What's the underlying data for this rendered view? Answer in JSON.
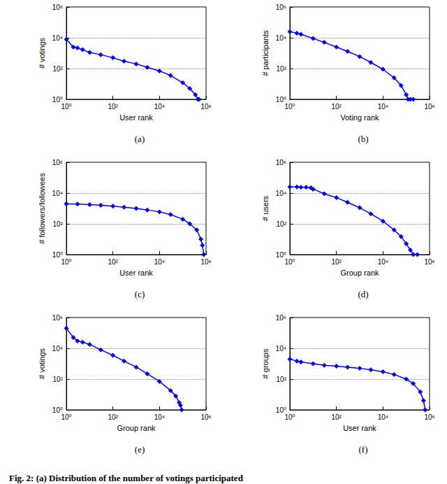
{
  "chart_data": [
    {
      "type": "line",
      "title": "(a)",
      "x_label": "User rank",
      "y_label": "# votings",
      "x": [
        1,
        2,
        3,
        5,
        10,
        30,
        100,
        300,
        1000,
        3000,
        10000,
        30000,
        100000,
        200000,
        350000,
        450000,
        500000
      ],
      "values": [
        8000,
        2500,
        2200,
        1700,
        1100,
        800,
        500,
        300,
        200,
        120,
        70,
        35,
        12,
        5,
        2,
        1,
        1
      ],
      "color": "#0000ee",
      "marker": "diamond",
      "log": true,
      "grid": true,
      "xlim": [
        1,
        1000000
      ],
      "ylim": [
        1,
        1000000
      ],
      "xticks": [
        {
          "value": 1,
          "label": "10⁰"
        },
        {
          "value": 100,
          "label": "10²"
        },
        {
          "value": 10000,
          "label": "10⁴"
        },
        {
          "value": 1000000,
          "label": "10⁶"
        }
      ],
      "yticks": [
        {
          "value": 1,
          "label": "10⁰"
        },
        {
          "value": 100,
          "label": "10²"
        },
        {
          "value": 10000,
          "label": "10⁴"
        },
        {
          "value": 1000000,
          "label": "10⁶"
        }
      ]
    },
    {
      "type": "line",
      "title": "(b)",
      "x_label": "Voting rank",
      "y_label": "# participants",
      "x": [
        1,
        2,
        3,
        10,
        30,
        100,
        300,
        1000,
        3000,
        10000,
        30000,
        60000,
        100000,
        120000,
        150000,
        200000
      ],
      "values": [
        25000,
        20000,
        17000,
        9000,
        5000,
        2500,
        1300,
        600,
        250,
        90,
        25,
        8,
        2,
        1,
        1,
        1
      ],
      "color": "#0000ee",
      "marker": "diamond",
      "log": true,
      "grid": true,
      "xlim": [
        1,
        1000000
      ],
      "ylim": [
        1,
        1000000
      ],
      "xticks": [
        {
          "value": 1,
          "label": "10⁰"
        },
        {
          "value": 100,
          "label": "10²"
        },
        {
          "value": 10000,
          "label": "10⁴"
        },
        {
          "value": 1000000,
          "label": "10⁶"
        }
      ],
      "yticks": [
        {
          "value": 1,
          "label": "10⁰"
        },
        {
          "value": 100,
          "label": "10²"
        },
        {
          "value": 10000,
          "label": "10⁴"
        },
        {
          "value": 1000000,
          "label": "10⁶"
        }
      ]
    },
    {
      "type": "line",
      "title": "(c)",
      "x_label": "User rank",
      "y_label": "# followers/followees",
      "x": [
        1,
        3,
        10,
        30,
        100,
        300,
        1000,
        3000,
        10000,
        30000,
        100000,
        200000,
        400000,
        600000,
        700000,
        800000
      ],
      "values": [
        2000,
        1900,
        1800,
        1600,
        1400,
        1200,
        1000,
        800,
        600,
        400,
        200,
        100,
        40,
        10,
        4,
        1
      ],
      "color": "#0000ee",
      "marker": "diamond",
      "log": true,
      "grid": true,
      "xlim": [
        1,
        1000000
      ],
      "ylim": [
        1,
        1000000
      ],
      "xticks": [
        {
          "value": 1,
          "label": "10⁰"
        },
        {
          "value": 100,
          "label": "10²"
        },
        {
          "value": 10000,
          "label": "10⁴"
        },
        {
          "value": 1000000,
          "label": "10⁶"
        }
      ],
      "yticks": [
        {
          "value": 1,
          "label": "10⁰"
        },
        {
          "value": 100,
          "label": "10²"
        },
        {
          "value": 10000,
          "label": "10⁴"
        },
        {
          "value": 1000000,
          "label": "10⁶"
        }
      ]
    },
    {
      "type": "line",
      "title": "(d)",
      "x_label": "Group rank",
      "y_label": "# users",
      "x": [
        1,
        2,
        3,
        5,
        8,
        10,
        30,
        100,
        300,
        1000,
        3000,
        10000,
        30000,
        60000,
        100000,
        150000,
        200000,
        300000
      ],
      "values": [
        25000,
        25000,
        24000,
        24000,
        22000,
        18000,
        9000,
        5000,
        2500,
        1100,
        450,
        150,
        40,
        15,
        5,
        2,
        1,
        1
      ],
      "color": "#0000ee",
      "marker": "diamond",
      "log": true,
      "grid": true,
      "xlim": [
        1,
        1000000
      ],
      "ylim": [
        1,
        1000000
      ],
      "xticks": [
        {
          "value": 1,
          "label": "10⁰"
        },
        {
          "value": 100,
          "label": "10²"
        },
        {
          "value": 10000,
          "label": "10⁴"
        },
        {
          "value": 1000000,
          "label": "10⁶"
        }
      ],
      "yticks": [
        {
          "value": 1,
          "label": "10⁰"
        },
        {
          "value": 100,
          "label": "10²"
        },
        {
          "value": 10000,
          "label": "10⁴"
        },
        {
          "value": 1000000,
          "label": "10⁶"
        }
      ]
    },
    {
      "type": "line",
      "title": "(e)",
      "x_label": "Group rank",
      "y_label": "# votings",
      "x": [
        1,
        2,
        3,
        5,
        10,
        30,
        100,
        300,
        1000,
        3000,
        10000,
        30000,
        50000,
        70000,
        80000,
        90000
      ],
      "values": [
        200000,
        50000,
        30000,
        25000,
        18000,
        8000,
        3500,
        1500,
        600,
        220,
        70,
        18,
        8,
        3,
        2,
        1
      ],
      "color": "#0000ee",
      "marker": "diamond",
      "log": true,
      "grid": true,
      "xlim": [
        1,
        1000000
      ],
      "ylim": [
        1,
        1000000
      ],
      "xticks": [
        {
          "value": 1,
          "label": "10⁰"
        },
        {
          "value": 100,
          "label": "10²"
        },
        {
          "value": 10000,
          "label": "10⁴"
        },
        {
          "value": 1000000,
          "label": "10⁶"
        }
      ],
      "yticks": [
        {
          "value": 1,
          "label": "10⁰"
        },
        {
          "value": 100,
          "label": "10²"
        },
        {
          "value": 10000,
          "label": "10⁴"
        },
        {
          "value": 1000000,
          "label": "10⁶"
        }
      ]
    },
    {
      "type": "line",
      "title": "(f)",
      "x_label": "User rank",
      "y_label": "# groups",
      "x": [
        1,
        2,
        3,
        10,
        30,
        100,
        300,
        1000,
        3000,
        10000,
        30000,
        100000,
        200000,
        400000,
        550000,
        650000
      ],
      "values": [
        2000,
        1500,
        1300,
        1000,
        800,
        700,
        600,
        500,
        400,
        300,
        200,
        100,
        50,
        15,
        4,
        1
      ],
      "color": "#0000ee",
      "marker": "diamond",
      "log": true,
      "grid": true,
      "xlim": [
        1,
        1000000
      ],
      "ylim": [
        1,
        1000000
      ],
      "xticks": [
        {
          "value": 1,
          "label": "10⁰"
        },
        {
          "value": 100,
          "label": "10²"
        },
        {
          "value": 10000,
          "label": "10⁴"
        },
        {
          "value": 1000000,
          "label": "10⁶"
        }
      ],
      "yticks": [
        {
          "value": 1,
          "label": "10⁰"
        },
        {
          "value": 100,
          "label": "10²"
        },
        {
          "value": 10000,
          "label": "10⁴"
        },
        {
          "value": 1000000,
          "label": "10⁶"
        }
      ]
    }
  ],
  "caption": "Fig. 2: (a) Distribution of the number of votings participated"
}
